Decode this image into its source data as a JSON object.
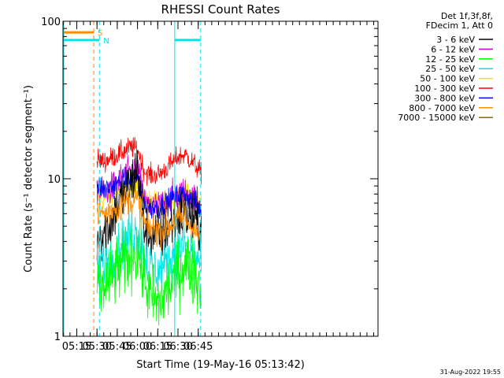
{
  "chart_data": {
    "type": "line",
    "title": "RHESSI Count Rates",
    "xlabel": "Start Time (19-May-16 05:13:42)",
    "ylabel": "Count Rate (s⁻¹ detector segment⁻¹)",
    "yscale": "log",
    "ylim": [
      1,
      100
    ],
    "xlim_minutes": [
      5.08,
      8.97
    ],
    "x_ticks": [
      {
        "label": "05:15",
        "hours": 5.25
      },
      {
        "label": "05:30",
        "hours": 5.5
      },
      {
        "label": "05:45",
        "hours": 5.75
      },
      {
        "label": "06:00",
        "hours": 6.0
      },
      {
        "label": "06:15",
        "hours": 6.25
      },
      {
        "label": "06:30",
        "hours": 6.5
      },
      {
        "label": "06:45",
        "hours": 6.75
      }
    ],
    "y_ticks": [
      {
        "label": "1",
        "value": 1
      },
      {
        "label": "10",
        "value": 10
      },
      {
        "label": "100",
        "value": 100
      }
    ],
    "data_start_hours": 5.5,
    "data_end_hours": 6.79,
    "legend_header": [
      "Det 1f,3f,8f,",
      "FDecim 1, Att 0"
    ],
    "legend_position": "right",
    "series": [
      {
        "name": "3 - 6 keV",
        "color": "#000000",
        "x": [
          "05:30",
          "05:35",
          "05:40",
          "05:45",
          "05:50",
          "05:55",
          "06:00",
          "06:05",
          "06:10",
          "06:15",
          "06:20",
          "06:25",
          "06:30",
          "06:35",
          "06:40",
          "06:45",
          "06:47"
        ],
        "values": [
          4.3,
          4.6,
          5.2,
          6.8,
          8.0,
          9.0,
          12.0,
          4.8,
          4.5,
          4.4,
          4.6,
          5.2,
          5.8,
          6.0,
          5.6,
          5.2,
          5.0
        ]
      },
      {
        "name": "6 - 12 keV",
        "color": "#d400d4",
        "x": [
          "05:30",
          "05:35",
          "05:40",
          "05:45",
          "05:50",
          "05:55",
          "06:00",
          "06:05",
          "06:10",
          "06:15",
          "06:20",
          "06:25",
          "06:30",
          "06:35",
          "06:40",
          "06:45",
          "06:47"
        ],
        "values": [
          8.5,
          8.0,
          8.6,
          9.5,
          10.5,
          11.0,
          11.8,
          7.2,
          6.6,
          6.7,
          7.0,
          7.6,
          8.0,
          8.2,
          7.6,
          7.0,
          6.9
        ]
      },
      {
        "name": "12 - 25 keV",
        "color": "#00ff00",
        "x": [
          "05:30",
          "05:35",
          "05:40",
          "05:45",
          "05:50",
          "05:55",
          "06:00",
          "06:05",
          "06:10",
          "06:15",
          "06:20",
          "06:25",
          "06:30",
          "06:35",
          "06:40",
          "06:45",
          "06:47"
        ],
        "values": [
          2.0,
          2.1,
          2.3,
          2.6,
          2.9,
          3.3,
          3.6,
          2.3,
          1.7,
          1.6,
          1.8,
          2.1,
          2.6,
          2.9,
          2.6,
          2.2,
          2.0
        ]
      },
      {
        "name": "25 - 50 keV",
        "color": "#00e5e5",
        "x": [
          "05:30",
          "05:35",
          "05:40",
          "05:45",
          "05:50",
          "05:55",
          "06:00",
          "06:05",
          "06:10",
          "06:15",
          "06:20",
          "06:25",
          "06:30",
          "06:35",
          "06:40",
          "06:45",
          "06:47"
        ],
        "values": [
          2.9,
          3.0,
          3.2,
          3.6,
          4.0,
          4.5,
          4.8,
          3.2,
          2.7,
          2.6,
          2.8,
          3.2,
          3.6,
          3.8,
          3.4,
          3.0,
          2.9
        ]
      },
      {
        "name": "50 - 100 keV",
        "color": "#ffe000",
        "x": [
          "05:30",
          "05:35",
          "05:40",
          "05:45",
          "05:50",
          "05:55",
          "06:00",
          "06:05",
          "06:10",
          "06:15",
          "06:20",
          "06:25",
          "06:30",
          "06:35",
          "06:40",
          "06:45",
          "06:47"
        ],
        "values": [
          7.5,
          7.4,
          7.8,
          8.2,
          8.6,
          9.0,
          9.5,
          7.4,
          7.0,
          7.0,
          7.2,
          7.6,
          8.0,
          8.2,
          7.8,
          7.4,
          7.3
        ]
      },
      {
        "name": "100 - 300 keV",
        "color": "#ff0000",
        "x": [
          "05:30",
          "05:35",
          "05:40",
          "05:45",
          "05:50",
          "05:55",
          "06:00",
          "06:05",
          "06:10",
          "06:15",
          "06:20",
          "06:25",
          "06:30",
          "06:35",
          "06:40",
          "06:45",
          "06:47"
        ],
        "values": [
          13.2,
          12.8,
          13.5,
          14.2,
          15.0,
          15.8,
          15.5,
          11.2,
          10.5,
          10.6,
          11.3,
          12.5,
          13.8,
          14.2,
          13.0,
          11.5,
          10.8
        ]
      },
      {
        "name": "300 - 800 keV",
        "color": "#0000ff",
        "x": [
          "05:30",
          "05:35",
          "05:40",
          "05:45",
          "05:50",
          "05:55",
          "06:00",
          "06:05",
          "06:10",
          "06:15",
          "06:20",
          "06:25",
          "06:30",
          "06:35",
          "06:40",
          "06:45",
          "06:47"
        ],
        "values": [
          9.2,
          8.6,
          8.8,
          9.2,
          9.6,
          10.0,
          10.3,
          7.0,
          6.5,
          6.6,
          6.9,
          7.4,
          7.8,
          8.0,
          7.4,
          6.6,
          6.3
        ]
      },
      {
        "name": "800 - 7000 keV",
        "color": "#ff8c00",
        "x": [
          "05:30",
          "05:35",
          "05:40",
          "05:45",
          "05:50",
          "05:55",
          "06:00",
          "06:05",
          "06:10",
          "06:15",
          "06:20",
          "06:25",
          "06:30",
          "06:35",
          "06:40",
          "06:45",
          "06:47"
        ],
        "values": [
          6.2,
          6.0,
          6.3,
          6.6,
          7.0,
          7.2,
          7.3,
          5.2,
          4.8,
          4.7,
          4.8,
          5.1,
          5.6,
          5.6,
          5.0,
          4.3,
          4.1
        ]
      },
      {
        "name": "7000 - 15000 keV",
        "color": "#8b6b00",
        "x": [],
        "values": []
      }
    ],
    "markers": [
      {
        "label": "S",
        "color": "#ff8c00",
        "style": "dashed",
        "bar_start_hours": 5.08,
        "bar_end_hours": 5.46,
        "bar_level": 85,
        "line_hours": 5.46
      },
      {
        "label": "N",
        "color": "#00e5e5",
        "style": "dashed",
        "bar_start_hours": 5.08,
        "bar_end_hours": 5.53,
        "bar_level": 76,
        "line_hours": 5.53
      }
    ],
    "shaded_intervals": [
      {
        "color": "#00e5e5",
        "start_hours": 6.46,
        "end_hours": 6.78,
        "bar_level": 76
      }
    ],
    "colors": {
      "background": "#ffffff",
      "axis": "#000000"
    },
    "footer": "31-Aug-2022 19:55"
  }
}
